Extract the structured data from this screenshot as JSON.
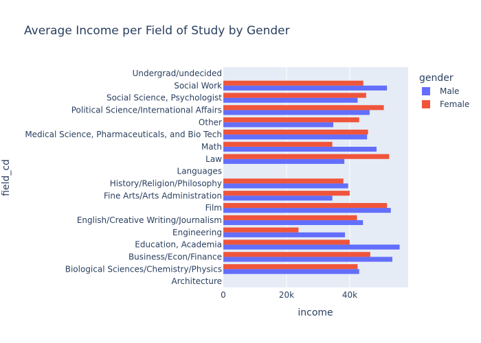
{
  "chart_data": {
    "type": "bar",
    "orientation": "horizontal",
    "barmode": "group",
    "title": "Average Income per Field of Study by Gender",
    "xlabel": "income",
    "ylabel": "field_cd",
    "xlim": [
      0,
      58500
    ],
    "xticks": [
      0,
      20000,
      40000
    ],
    "xtick_labels": [
      "0",
      "20k",
      "40k"
    ],
    "grid": true,
    "plot_background": "#e5ecf6",
    "legend": {
      "title": "gender",
      "placement": "top-right"
    },
    "categories": [
      "Architecture",
      "Biological Sciences/Chemistry/Physics",
      "Business/Econ/Finance",
      "Education, Academia",
      "Engineering",
      "English/Creative Writing/Journalism",
      "Film",
      "Fine Arts/Arts Administration",
      "History/Religion/Philosophy",
      "Languages",
      "Law",
      "Math",
      "Medical Science, Pharmaceuticals, and Bio Tech",
      "Other",
      "Political Science/International Affairs",
      "Social Science, Psychologist",
      "Social Work",
      "Undergrad/undecided"
    ],
    "series": [
      {
        "name": "Male",
        "color": "#636efa",
        "values": [
          null,
          43000,
          53500,
          55800,
          38500,
          44200,
          53000,
          34500,
          39500,
          null,
          38300,
          48500,
          45500,
          34800,
          46300,
          42500,
          51800,
          null
        ]
      },
      {
        "name": "Female",
        "color": "#ef553b",
        "values": [
          null,
          42500,
          46500,
          40000,
          23800,
          42300,
          51800,
          40000,
          38000,
          null,
          52500,
          34500,
          45800,
          43000,
          50800,
          45200,
          44300,
          null
        ]
      }
    ]
  }
}
